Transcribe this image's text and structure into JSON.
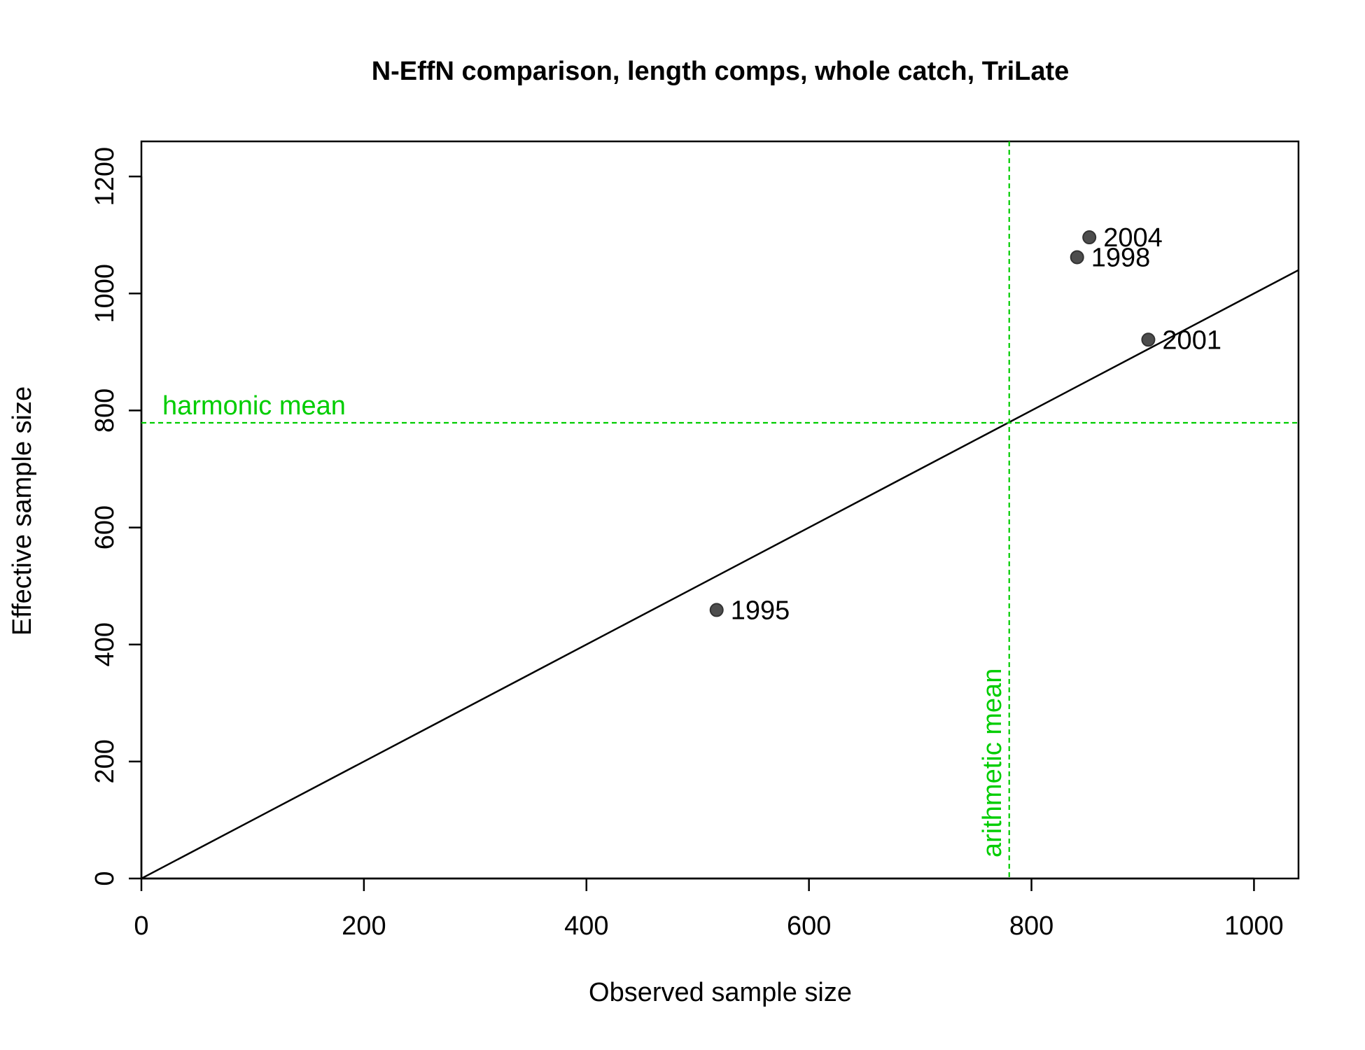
{
  "chart_data": {
    "type": "scatter",
    "title": "N-EffN comparison, length comps, whole catch, TriLate",
    "xlabel": "Observed sample size",
    "ylabel": "Effective sample size",
    "xlim": [
      0,
      1040
    ],
    "ylim": [
      0,
      1260
    ],
    "x_ticks": [
      0,
      200,
      400,
      600,
      800,
      1000
    ],
    "y_ticks": [
      0,
      200,
      400,
      600,
      800,
      1000,
      1200
    ],
    "grid": false,
    "points": [
      {
        "label": "1995",
        "x": 517,
        "y": 459
      },
      {
        "label": "1998",
        "x": 841,
        "y": 1062
      },
      {
        "label": "2001",
        "x": 905,
        "y": 921
      },
      {
        "label": "2004",
        "x": 852,
        "y": 1096
      }
    ],
    "identity_line": {
      "slope": 1,
      "intercept": 0
    },
    "reference_lines": {
      "harmonic_mean": {
        "label": "harmonic mean",
        "value": 779
      },
      "arithmetic_mean": {
        "label": "arithmetic mean",
        "value": 780
      }
    },
    "colors": {
      "points": "#4d4d4d",
      "reference": "#00cd00",
      "line": "#000000"
    }
  }
}
